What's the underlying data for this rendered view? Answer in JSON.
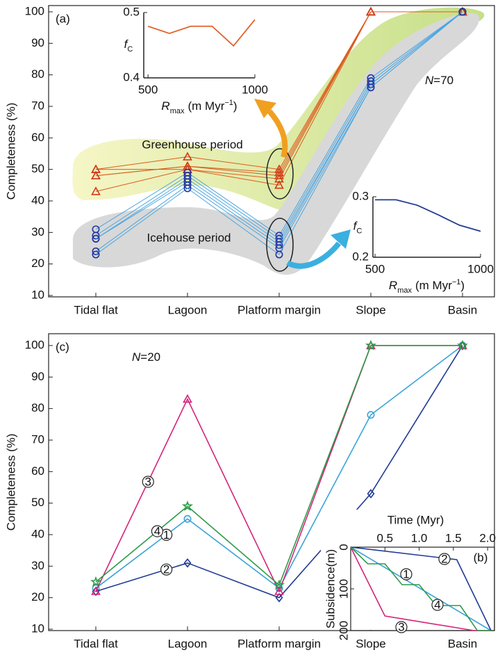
{
  "chart_data": [
    {
      "type": "line",
      "panel_label": "(a)",
      "annotation": [
        "N",
        "=70"
      ],
      "y_label": "Completeness (%)",
      "categories": [
        "Tidal flat",
        "Lagoon",
        "Platform margin",
        "Slope",
        "Basin"
      ],
      "ylim": [
        10,
        100
      ],
      "yticks": [
        10,
        20,
        30,
        40,
        50,
        60,
        70,
        80,
        90,
        100
      ],
      "groups": [
        {
          "label": "Greenhouse period",
          "marker": "triangle",
          "color": "#dc5a1e",
          "marker_color": "#d03a1a",
          "series": [
            {
              "values": [
                50,
                54,
                50,
                100,
                100
              ]
            },
            {
              "values": [
                48,
                51,
                49,
                100,
                100
              ]
            },
            {
              "values": [
                48,
                51,
                48,
                100,
                100
              ]
            },
            {
              "values": [
                43,
                50,
                47,
                100,
                100
              ]
            },
            {
              "values": [
                50,
                50,
                45,
                100,
                100
              ]
            }
          ]
        },
        {
          "label": "Icehouse period",
          "marker": "circle",
          "color": "#4aa6e0",
          "marker_color": "#2233a0",
          "series": [
            {
              "values": [
                31,
                49,
                29,
                79,
                100
              ]
            },
            {
              "values": [
                29,
                48,
                28,
                78,
                100
              ]
            },
            {
              "values": [
                28,
                47,
                27,
                77,
                100
              ]
            },
            {
              "values": [
                28,
                46,
                26,
                77,
                100
              ]
            },
            {
              "values": [
                24,
                45,
                25,
                76,
                100
              ]
            },
            {
              "values": [
                23,
                44,
                23,
                76,
                100
              ]
            }
          ]
        }
      ]
    },
    {
      "type": "inset-line",
      "x": [
        500,
        600,
        700,
        800,
        900,
        1000
      ],
      "series": [
        {
          "color": "#e0622a",
          "values": [
            0.479,
            0.468,
            0.479,
            0.479,
            0.449,
            0.489
          ]
        }
      ],
      "xlim": [
        480,
        1000
      ],
      "xticks": [
        500,
        1000
      ],
      "ylim": [
        0.4,
        0.5
      ],
      "yticks": [
        0.4,
        0.5
      ],
      "x_label": [
        "R",
        "max",
        "(m Myr",
        "−1",
        ")"
      ],
      "y_label": [
        "f",
        "C"
      ]
    },
    {
      "type": "inset-line",
      "x": [
        500,
        600,
        700,
        800,
        900,
        1000
      ],
      "series": [
        {
          "color": "#1f3a93",
          "values": [
            0.295,
            0.295,
            0.286,
            0.27,
            0.253,
            0.243
          ]
        }
      ],
      "xlim": [
        490,
        1000
      ],
      "xticks": [
        500,
        1000
      ],
      "ylim": [
        0.2,
        0.3
      ],
      "yticks": [
        0.2,
        0.3
      ],
      "x_label": [
        "R",
        "max",
        "(m Myr",
        "−1",
        ")"
      ],
      "y_label": [
        "f",
        "C"
      ]
    },
    {
      "type": "line",
      "panel_label": "(c)",
      "annotation": [
        "N",
        "=20"
      ],
      "y_label": "Completeness (%)",
      "categories": [
        "Tidal flat",
        "Lagoon",
        "Platform margin",
        "Slope",
        "Basin"
      ],
      "ylim": [
        10,
        100
      ],
      "yticks": [
        10,
        20,
        30,
        40,
        50,
        60,
        70,
        80,
        90,
        100
      ],
      "series": [
        {
          "name": "1",
          "color": "#3aa3d8",
          "marker": "circle",
          "values": [
            23,
            45,
            23,
            78,
            100
          ]
        },
        {
          "name": "2",
          "color": "#1f3a93",
          "marker": "diamond",
          "values": [
            22,
            31,
            20,
            53,
            100
          ]
        },
        {
          "name": "3",
          "color": "#d4237a",
          "marker": "triangle",
          "values": [
            22,
            83,
            22,
            100,
            100
          ]
        },
        {
          "name": "4",
          "color": "#2e9a48",
          "marker": "star",
          "values": [
            25,
            49,
            24,
            100,
            100
          ]
        }
      ]
    },
    {
      "type": "step-line",
      "panel_label": "(b)",
      "x_label": "Time (Myr)",
      "y_label": "Subsidence(m)",
      "xlim": [
        0,
        2.1
      ],
      "xticks": [
        0.5,
        {
          "value": 1,
          "label": "1.0"
        },
        1.5,
        {
          "value": 2,
          "label": "2.0"
        }
      ],
      "ylim": [
        0,
        200
      ],
      "yticks": [
        0,
        100,
        200
      ],
      "y_inverted": true,
      "series": [
        {
          "color": "#3aa3d8",
          "x": [
            0,
            2.05
          ],
          "values": [
            0,
            200
          ]
        },
        {
          "color": "#1f3a93",
          "x": [
            0,
            1.4,
            1.55,
            2.05
          ],
          "values": [
            0,
            27,
            30,
            200
          ]
        },
        {
          "color": "#d4237a",
          "x": [
            0,
            0.5,
            1.8,
            2.05
          ],
          "values": [
            0,
            165,
            200,
            200
          ]
        },
        {
          "color": "#2e9a48",
          "x": [
            0,
            0.25,
            0.5,
            0.75,
            1,
            1.25,
            1.6,
            1.85,
            2.05
          ],
          "values": [
            0,
            40,
            40,
            90,
            90,
            140,
            140,
            200,
            200
          ]
        }
      ]
    }
  ]
}
